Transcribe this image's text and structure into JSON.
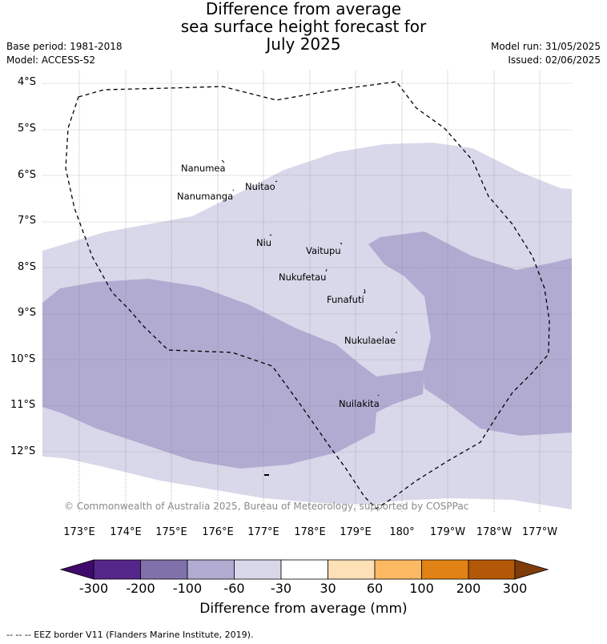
{
  "title_lines": [
    "Difference from average",
    "sea surface height forecast for",
    "July 2025"
  ],
  "meta_left": {
    "base_period": "Base period: 1981-2018",
    "model": "Model: ACCESS-S2"
  },
  "meta_right": {
    "model_run": "Model run: 31/05/2025",
    "issued": "Issued: 02/06/2025"
  },
  "map": {
    "lat_labels": [
      "4°S",
      "5°S",
      "6°S",
      "7°S",
      "8°S",
      "9°S",
      "10°S",
      "11°S",
      "12°S"
    ],
    "lon_labels": [
      "173°E",
      "174°E",
      "175°E",
      "176°E",
      "177°E",
      "178°E",
      "179°E",
      "180°",
      "179°W",
      "178°W",
      "177°W"
    ],
    "islands": [
      {
        "name": "Nanumea"
      },
      {
        "name": "Nuitao"
      },
      {
        "name": "Nanumanga"
      },
      {
        "name": "Niu"
      },
      {
        "name": "Vaitupu"
      },
      {
        "name": "Nukufetau"
      },
      {
        "name": "Funafuti"
      },
      {
        "name": "Nukulaelae"
      },
      {
        "name": "Nuilakita"
      }
    ],
    "copyright": "© Commonwealth of Australia 2025, Bureau of Meteorology, supported by COSPPac",
    "colors": {
      "band_-60_-30": "#d8d8ea",
      "band_-100_-60": "#b1abd2",
      "grid": "#888888"
    }
  },
  "colorbar": {
    "ticks": [
      "-300",
      "-200",
      "-100",
      "-60",
      "-30",
      "30",
      "60",
      "100",
      "200",
      "300"
    ],
    "colors": [
      "#3f0a6b",
      "#54268a",
      "#8071aa",
      "#b1abd2",
      "#d8d8ea",
      "#ffffff",
      "#fee0b6",
      "#fdb863",
      "#e08214",
      "#b35806",
      "#7f3b08"
    ],
    "title": "Difference from average (mm)"
  },
  "legend": "-- -- -- EEZ border V11 (Flanders Marine Institute, 2019)."
}
